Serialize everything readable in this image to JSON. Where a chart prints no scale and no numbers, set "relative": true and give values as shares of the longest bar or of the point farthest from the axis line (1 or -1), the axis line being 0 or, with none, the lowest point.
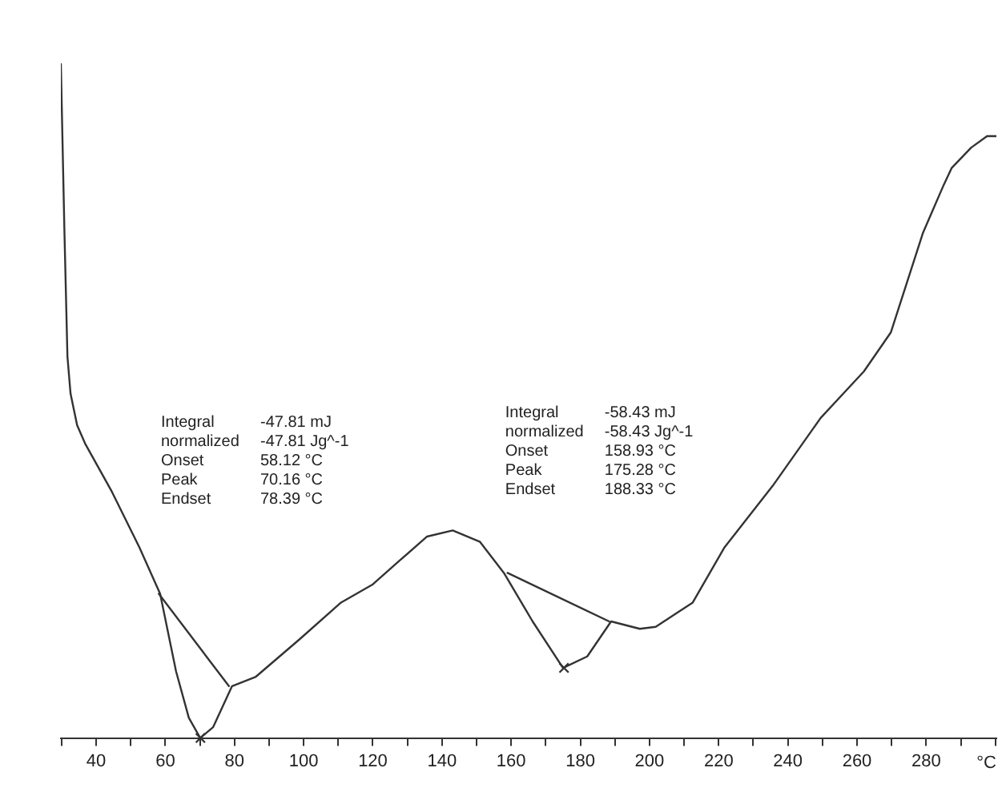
{
  "chart_data": {
    "type": "line",
    "relative": true,
    "xlabel": "°C",
    "xlim": [
      29.8,
      300.3
    ],
    "xticks": [
      {
        "value": 30,
        "label": null
      },
      40,
      {
        "value": 50,
        "label": null
      },
      60,
      {
        "value": 70,
        "label": null
      },
      80,
      {
        "value": 90,
        "label": null
      },
      100,
      {
        "value": 110,
        "label": null
      },
      120,
      {
        "value": 130,
        "label": null
      },
      140,
      {
        "value": 150,
        "label": null
      },
      160,
      {
        "value": 170,
        "label": null
      },
      180,
      {
        "value": 190,
        "label": null
      },
      200,
      {
        "value": 210,
        "label": null
      },
      220,
      {
        "value": 230,
        "label": null
      },
      240,
      {
        "value": 250,
        "label": null
      },
      260,
      {
        "value": 270,
        "label": null
      },
      280,
      {
        "value": 290,
        "label": null
      },
      {
        "value": 300,
        "label": null
      }
    ],
    "grid": false,
    "legend": false,
    "marker": "none",
    "line_style": "solid",
    "series": [
      {
        "color": "#333333",
        "x": [
          29.8,
          30.8,
          31.7,
          32.6,
          34.5,
          36.8,
          44.6,
          52.5,
          58.5,
          63.1,
          66.8,
          70.1,
          73.8,
          79.3,
          86.2,
          98.7,
          110.8,
          120.0,
          127.9,
          135.7,
          143.1,
          151.0,
          157.9,
          166.2,
          175.0,
          182.0,
          188.9,
          197.2,
          201.8,
          212.5,
          221.7,
          235.6,
          249.5,
          262.0,
          269.8,
          279.1,
          285.1,
          287.4,
          293.0,
          297.6,
          300.3
        ],
        "values": [
          1.0,
          0.758,
          0.566,
          0.511,
          0.464,
          0.437,
          0.365,
          0.283,
          0.214,
          0.099,
          0.03,
          0,
          0.016,
          0.077,
          0.091,
          0.146,
          0.201,
          0.228,
          0.264,
          0.299,
          0.308,
          0.291,
          0.245,
          0.173,
          0.104,
          0.121,
          0.173,
          0.162,
          0.165,
          0.201,
          0.283,
          0.374,
          0.475,
          0.544,
          0.602,
          0.75,
          0.821,
          0.846,
          0.876,
          0.893,
          0.893
        ]
      },
      {
        "color": "#333333",
        "x": [
          58.12,
          78.39
        ],
        "values": [
          0.214,
          0.077
        ]
      },
      {
        "color": "#333333",
        "x": [
          158.93,
          188.33
        ],
        "values": [
          0.245,
          0.173
        ]
      },
      {
        "type": "scatter",
        "marker": "cross",
        "color": "#333333",
        "x": [
          70.16,
          175.28
        ],
        "values": [
          0,
          0.104
        ]
      }
    ],
    "annotations": [
      "Integral\t-47.81 mJ\nnormalized\t-47.81 Jg^-1\nOnset\t58.12 °C\nPeak\t70.16 °C\nEndset\t78.39 °C",
      "Integral\t-58.43 mJ\nnormalized\t-58.43 Jg^-1\nOnset\t158.93 °C\nPeak\t175.28 °C\nEndset\t188.33 °C"
    ]
  }
}
